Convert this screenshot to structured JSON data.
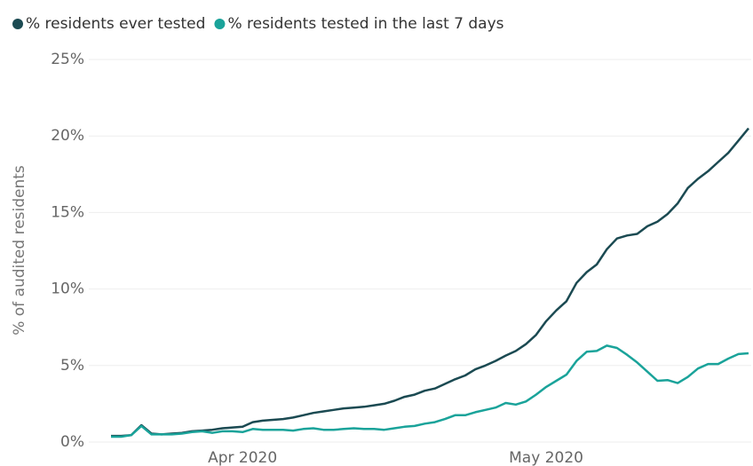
{
  "chart_data": {
    "type": "line",
    "y_label": "% of audited residents",
    "categories": [
      null,
      null,
      null,
      null,
      null,
      null,
      null,
      null,
      null,
      null,
      null,
      null,
      null,
      "Apr 2020",
      null,
      null,
      null,
      null,
      null,
      null,
      null,
      null,
      null,
      null,
      null,
      null,
      null,
      null,
      null,
      null,
      null,
      null,
      null,
      null,
      null,
      null,
      null,
      null,
      null,
      null,
      null,
      null,
      null,
      "May 2020",
      null,
      null,
      null,
      null,
      null,
      null,
      null,
      null,
      null,
      null,
      null,
      null,
      null,
      null,
      null,
      null,
      null,
      null,
      null,
      null
    ],
    "series": [
      {
        "name": "% residents ever tested",
        "color": "#1b4a52",
        "values": [
          0.4,
          0.4,
          0.45,
          1.1,
          0.55,
          0.5,
          0.55,
          0.6,
          0.7,
          0.75,
          0.8,
          0.9,
          0.95,
          1.0,
          1.3,
          1.4,
          1.45,
          1.5,
          1.6,
          1.75,
          1.9,
          2.0,
          2.1,
          2.2,
          2.25,
          2.3,
          2.4,
          2.5,
          2.7,
          2.95,
          3.1,
          3.35,
          3.5,
          3.8,
          4.1,
          4.35,
          4.75,
          5.0,
          5.3,
          5.65,
          5.95,
          6.4,
          7.0,
          7.9,
          8.6,
          9.2,
          10.4,
          11.1,
          11.6,
          12.6,
          13.3,
          13.5,
          13.6,
          14.1,
          14.4,
          14.9,
          15.6,
          16.6,
          17.2,
          17.7,
          18.3,
          18.9,
          19.7,
          20.5
        ]
      },
      {
        "name": "% residents tested in the last 7 days",
        "color": "#1aa39a",
        "values": [
          0.35,
          0.35,
          0.45,
          1.05,
          0.5,
          0.5,
          0.5,
          0.55,
          0.65,
          0.7,
          0.6,
          0.7,
          0.7,
          0.65,
          0.85,
          0.8,
          0.8,
          0.8,
          0.75,
          0.85,
          0.9,
          0.8,
          0.8,
          0.85,
          0.9,
          0.85,
          0.85,
          0.8,
          0.9,
          1.0,
          1.05,
          1.2,
          1.3,
          1.5,
          1.75,
          1.75,
          1.95,
          2.1,
          2.25,
          2.55,
          2.45,
          2.65,
          3.1,
          3.6,
          4.0,
          4.4,
          5.3,
          5.9,
          5.95,
          6.3,
          6.15,
          5.7,
          5.2,
          4.6,
          4.0,
          4.05,
          3.85,
          4.25,
          4.8,
          5.1,
          5.1,
          5.45,
          5.75,
          5.8
        ]
      }
    ],
    "ylim": [
      0,
      25
    ],
    "yticks": [
      {
        "value": 0,
        "label": "0%"
      },
      {
        "value": 5,
        "label": "5%"
      },
      {
        "value": 10,
        "label": "10%"
      },
      {
        "value": 15,
        "label": "15%"
      },
      {
        "value": 20,
        "label": "20%"
      },
      {
        "value": 25,
        "label": "25%"
      }
    ],
    "grid": true,
    "legend": "top-left"
  }
}
